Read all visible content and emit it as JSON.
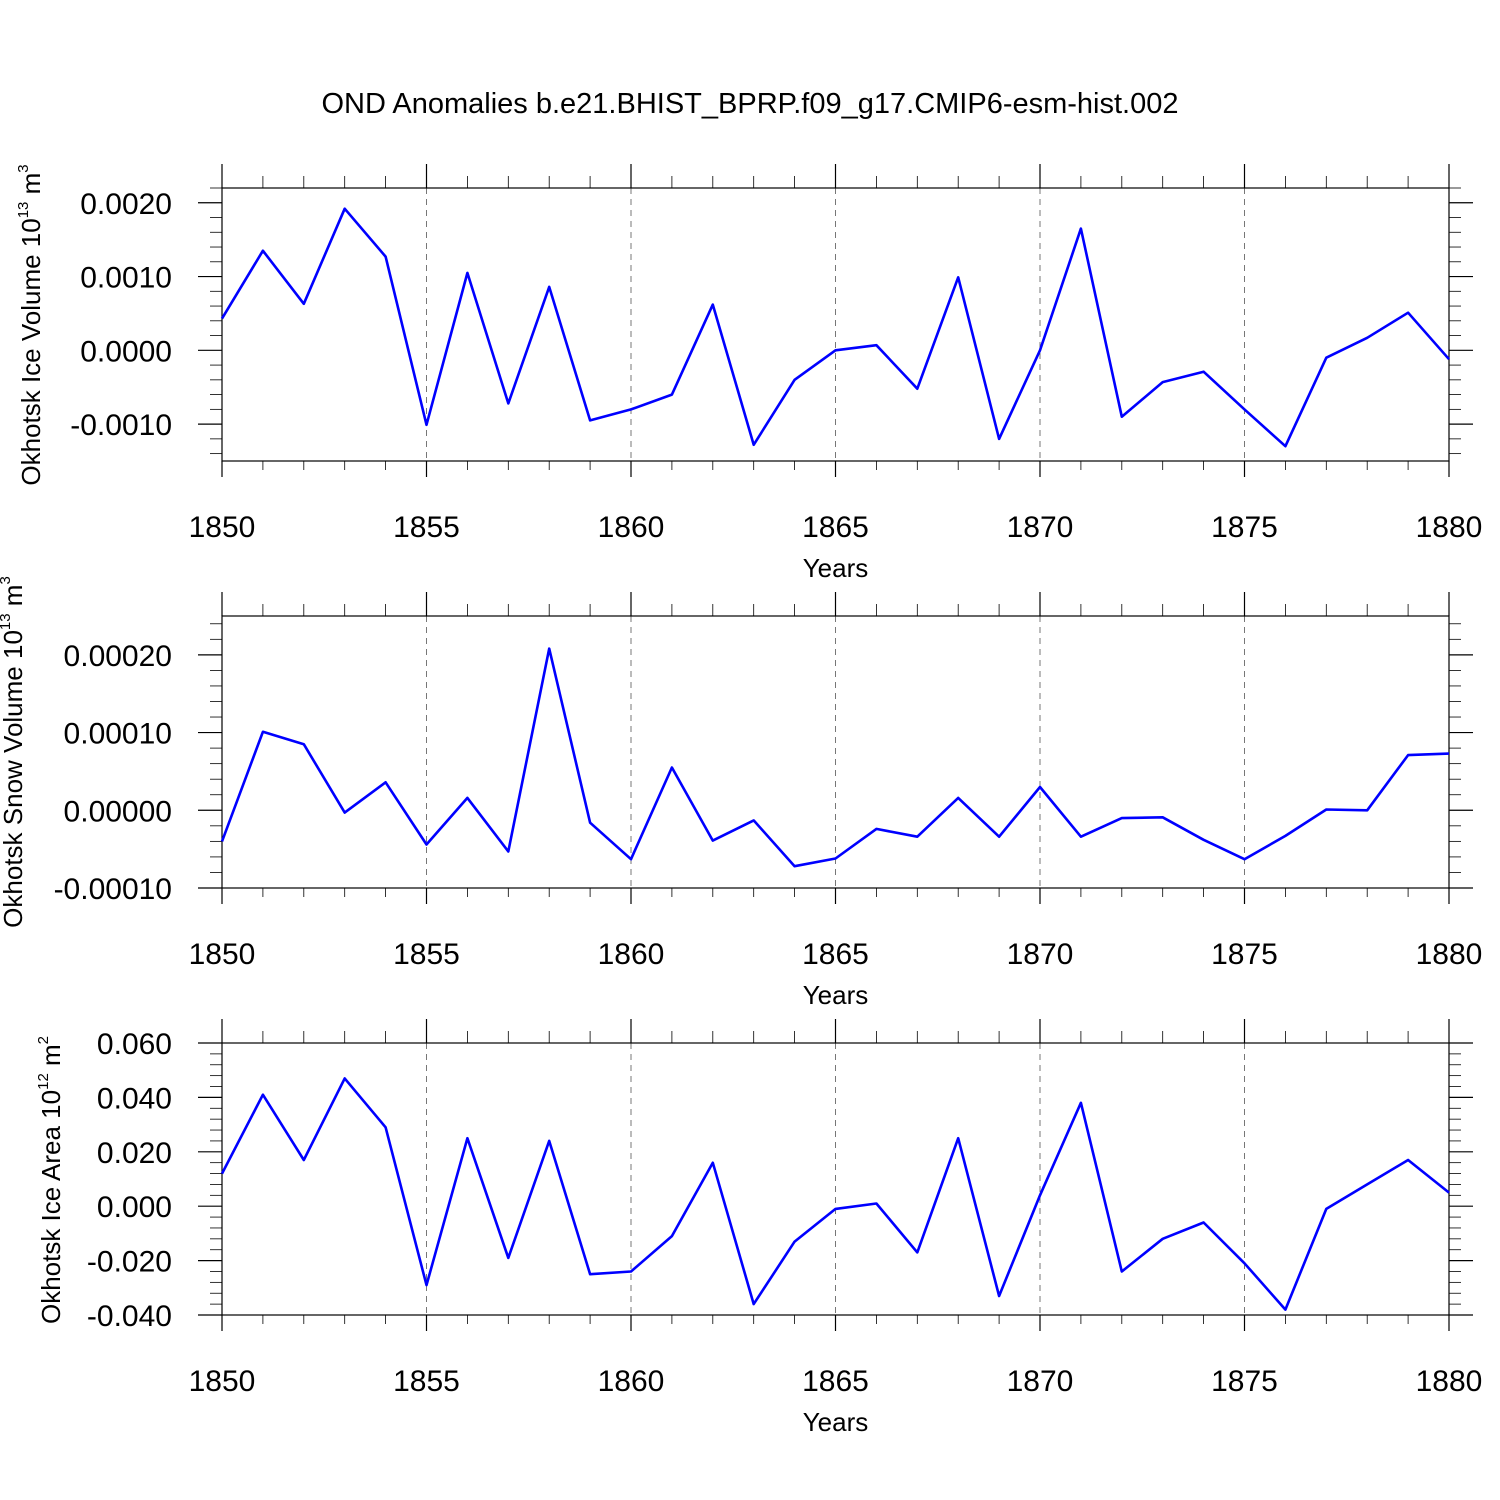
{
  "figure": {
    "title": "OND Anomalies b.e21.BHIST_BPRP.f09_g17.CMIP6-esm-hist.002"
  },
  "chart_data": [
    {
      "type": "line",
      "xlabel": "Years",
      "ylabel": {
        "main": "Okhotsk Ice Volume 10",
        "exp": "13",
        "unit": " m",
        "unitexp": "3"
      },
      "xlim": [
        1850,
        1880
      ],
      "ylim": [
        -0.0015,
        0.0022
      ],
      "xticks": [
        1850,
        1855,
        1860,
        1865,
        1870,
        1875,
        1880
      ],
      "xtick_labels": [
        "1850",
        "1855",
        "1860",
        "1865",
        "1870",
        "1875",
        "1880"
      ],
      "yticks": [
        -0.001,
        0.0,
        0.001,
        0.002
      ],
      "ytick_labels": [
        "-0.0010",
        "0.0000",
        "0.0010",
        "0.0020"
      ],
      "color": "#0000ff",
      "x": [
        1850,
        1851,
        1852,
        1853,
        1854,
        1855,
        1856,
        1857,
        1858,
        1859,
        1860,
        1861,
        1862,
        1863,
        1864,
        1865,
        1866,
        1867,
        1868,
        1869,
        1870,
        1871,
        1872,
        1873,
        1874,
        1875,
        1876,
        1877,
        1878,
        1879,
        1880
      ],
      "values": [
        0.00043,
        0.00135,
        0.00063,
        0.00192,
        0.00127,
        -0.00101,
        0.00105,
        -0.00072,
        0.00086,
        -0.00095,
        -0.0008,
        -0.0006,
        0.00062,
        -0.00128,
        -0.0004,
        0.0,
        7e-05,
        -0.00052,
        0.00099,
        -0.0012,
        0.0,
        0.00165,
        -0.0009,
        -0.00043,
        -0.00029,
        -0.0008,
        -0.0013,
        -0.0001,
        0.00017,
        0.00051,
        -0.00012
      ]
    },
    {
      "type": "line",
      "xlabel": "Years",
      "ylabel": {
        "main": "Okhotsk Snow Volume 10",
        "exp": "13",
        "unit": " m",
        "unitexp": "3"
      },
      "xlim": [
        1850,
        1880
      ],
      "ylim": [
        -0.0001,
        0.00025
      ],
      "xticks": [
        1850,
        1855,
        1860,
        1865,
        1870,
        1875,
        1880
      ],
      "xtick_labels": [
        "1850",
        "1855",
        "1860",
        "1865",
        "1870",
        "1875",
        "1880"
      ],
      "yticks": [
        -0.0001,
        0.0,
        0.0001,
        0.0002
      ],
      "ytick_labels": [
        "-0.00010",
        "0.00000",
        "0.00010",
        "0.00020"
      ],
      "color": "#0000ff",
      "x": [
        1850,
        1851,
        1852,
        1853,
        1854,
        1855,
        1856,
        1857,
        1858,
        1859,
        1860,
        1861,
        1862,
        1863,
        1864,
        1865,
        1866,
        1867,
        1868,
        1869,
        1870,
        1871,
        1872,
        1873,
        1874,
        1875,
        1876,
        1877,
        1878,
        1879,
        1880
      ],
      "values": [
        -4e-05,
        0.000101,
        8.5e-05,
        -3e-06,
        3.6e-05,
        -4.4e-05,
        1.6e-05,
        -5.3e-05,
        0.000208,
        -1.6e-05,
        -6.3e-05,
        5.5e-05,
        -3.9e-05,
        -1.3e-05,
        -7.2e-05,
        -6.2e-05,
        -2.4e-05,
        -3.4e-05,
        1.6e-05,
        -3.4e-05,
        3e-05,
        -3.4e-05,
        -1e-05,
        -9e-06,
        -3.8e-05,
        -6.3e-05,
        -3.3e-05,
        1e-06,
        0.0,
        7.1e-05,
        7.3e-05
      ]
    },
    {
      "type": "line",
      "xlabel": "Years",
      "ylabel": {
        "main": "Okhotsk Ice Area 10",
        "exp": "12",
        "unit": " m",
        "unitexp": "2"
      },
      "xlim": [
        1850,
        1880
      ],
      "ylim": [
        -0.04,
        0.06
      ],
      "xticks": [
        1850,
        1855,
        1860,
        1865,
        1870,
        1875,
        1880
      ],
      "xtick_labels": [
        "1850",
        "1855",
        "1860",
        "1865",
        "1870",
        "1875",
        "1880"
      ],
      "yticks": [
        -0.04,
        -0.02,
        0.0,
        0.02,
        0.04,
        0.06
      ],
      "ytick_labels": [
        "-0.040",
        "-0.020",
        "0.000",
        "0.020",
        "0.040",
        "0.060"
      ],
      "color": "#0000ff",
      "x": [
        1850,
        1851,
        1852,
        1853,
        1854,
        1855,
        1856,
        1857,
        1858,
        1859,
        1860,
        1861,
        1862,
        1863,
        1864,
        1865,
        1866,
        1867,
        1868,
        1869,
        1870,
        1871,
        1872,
        1873,
        1874,
        1875,
        1876,
        1877,
        1878,
        1879,
        1880
      ],
      "values": [
        0.012,
        0.041,
        0.017,
        0.047,
        0.029,
        -0.029,
        0.025,
        -0.019,
        0.024,
        -0.025,
        -0.024,
        -0.011,
        0.016,
        -0.036,
        -0.013,
        -0.001,
        0.001,
        -0.017,
        0.025,
        -0.033,
        0.004,
        0.038,
        -0.024,
        -0.012,
        -0.006,
        -0.021,
        -0.038,
        -0.001,
        0.008,
        0.017,
        0.005
      ]
    }
  ]
}
